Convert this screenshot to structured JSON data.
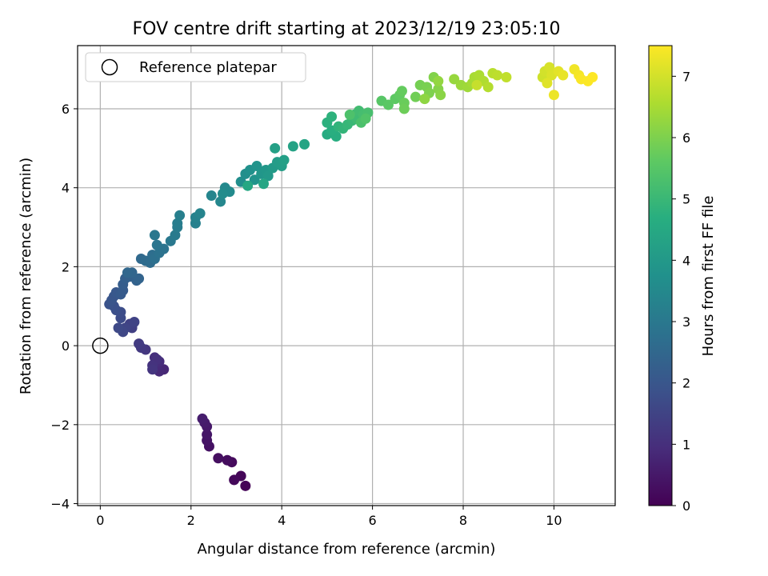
{
  "chart_data": {
    "type": "scatter",
    "title": "FOV centre drift starting at 2023/12/19 23:05:10",
    "xlabel": "Angular distance from reference (arcmin)",
    "ylabel": "Rotation from reference (arcmin)",
    "xlim": [
      -0.5,
      11.35
    ],
    "ylim": [
      -4.05,
      7.6
    ],
    "xticks": [
      0,
      2,
      4,
      6,
      8,
      10
    ],
    "yticks": [
      -4,
      -2,
      0,
      2,
      4,
      6
    ],
    "grid": true,
    "legend": {
      "position": "top-left",
      "entries": [
        "Reference platepar"
      ]
    },
    "reference_point": {
      "x": 0,
      "y": 0,
      "label": "Reference platepar"
    },
    "colorbar": {
      "label": "Hours from first FF file",
      "colormap": "viridis",
      "range": [
        0,
        7.5
      ],
      "ticks": [
        0,
        1,
        2,
        3,
        4,
        5,
        6,
        7
      ]
    },
    "points": [
      [
        3.2,
        -3.55,
        0.05
      ],
      [
        3.1,
        -3.3,
        0.1
      ],
      [
        2.95,
        -3.4,
        0.15
      ],
      [
        2.9,
        -2.95,
        0.2
      ],
      [
        2.8,
        -2.9,
        0.25
      ],
      [
        2.6,
        -2.85,
        0.3
      ],
      [
        2.4,
        -2.55,
        0.35
      ],
      [
        2.35,
        -2.4,
        0.4
      ],
      [
        2.35,
        -2.25,
        0.45
      ],
      [
        2.35,
        -2.05,
        0.5
      ],
      [
        2.3,
        -1.95,
        0.55
      ],
      [
        2.25,
        -1.85,
        0.6
      ],
      [
        1.4,
        -0.6,
        0.8
      ],
      [
        1.3,
        -0.65,
        0.85
      ],
      [
        1.25,
        -0.5,
        0.9
      ],
      [
        1.3,
        -0.4,
        0.95
      ],
      [
        1.2,
        -0.3,
        1.0
      ],
      [
        1.25,
        -0.35,
        1.05
      ],
      [
        1.15,
        -0.5,
        1.1
      ],
      [
        1.15,
        -0.6,
        1.15
      ],
      [
        1.0,
        -0.1,
        1.2
      ],
      [
        0.9,
        -0.05,
        1.25
      ],
      [
        0.85,
        0.05,
        1.3
      ],
      [
        0.7,
        0.45,
        1.4
      ],
      [
        0.65,
        0.55,
        1.45
      ],
      [
        0.75,
        0.6,
        1.5
      ],
      [
        0.55,
        0.45,
        1.55
      ],
      [
        0.5,
        0.35,
        1.6
      ],
      [
        0.4,
        0.45,
        1.65
      ],
      [
        0.45,
        0.7,
        1.7
      ],
      [
        0.45,
        0.85,
        1.75
      ],
      [
        0.35,
        0.9,
        1.8
      ],
      [
        0.3,
        1.0,
        1.85
      ],
      [
        0.2,
        1.05,
        1.9
      ],
      [
        0.25,
        1.15,
        1.95
      ],
      [
        0.3,
        1.25,
        2.0
      ],
      [
        0.35,
        1.35,
        2.05
      ],
      [
        0.45,
        1.3,
        2.1
      ],
      [
        0.5,
        1.4,
        2.15
      ],
      [
        0.5,
        1.55,
        2.2
      ],
      [
        0.55,
        1.7,
        2.25
      ],
      [
        0.65,
        1.75,
        2.3
      ],
      [
        0.8,
        1.65,
        2.35
      ],
      [
        0.85,
        1.7,
        2.4
      ],
      [
        0.7,
        1.85,
        2.45
      ],
      [
        0.6,
        1.85,
        2.5
      ],
      [
        0.9,
        2.2,
        2.55
      ],
      [
        1.0,
        2.15,
        2.6
      ],
      [
        1.1,
        2.1,
        2.65
      ],
      [
        1.15,
        2.3,
        2.7
      ],
      [
        1.2,
        2.2,
        2.75
      ],
      [
        1.3,
        2.35,
        2.8
      ],
      [
        1.4,
        2.45,
        2.85
      ],
      [
        1.25,
        2.55,
        2.9
      ],
      [
        1.2,
        2.8,
        2.95
      ],
      [
        1.55,
        2.65,
        3.0
      ],
      [
        1.65,
        2.8,
        3.05
      ],
      [
        1.7,
        3.0,
        3.1
      ],
      [
        1.7,
        3.1,
        3.15
      ],
      [
        1.75,
        3.3,
        3.2
      ],
      [
        2.1,
        3.1,
        3.25
      ],
      [
        2.1,
        3.25,
        3.3
      ],
      [
        2.2,
        3.35,
        3.35
      ],
      [
        2.45,
        3.8,
        3.4
      ],
      [
        2.65,
        3.65,
        3.45
      ],
      [
        2.75,
        4.0,
        3.5
      ],
      [
        2.85,
        3.9,
        3.55
      ],
      [
        2.7,
        3.85,
        3.6
      ],
      [
        3.1,
        4.15,
        3.65
      ],
      [
        3.2,
        4.35,
        3.7
      ],
      [
        3.3,
        4.45,
        3.75
      ],
      [
        3.4,
        4.2,
        3.8
      ],
      [
        3.45,
        4.55,
        3.85
      ],
      [
        3.55,
        4.35,
        3.9
      ],
      [
        3.65,
        4.45,
        3.95
      ],
      [
        3.7,
        4.3,
        4.0
      ],
      [
        3.8,
        4.5,
        4.05
      ],
      [
        3.9,
        4.65,
        4.1
      ],
      [
        4.0,
        4.55,
        4.15
      ],
      [
        4.05,
        4.7,
        4.2
      ],
      [
        3.85,
        5.0,
        4.25
      ],
      [
        4.25,
        5.05,
        4.3
      ],
      [
        4.5,
        5.1,
        4.35
      ],
      [
        3.6,
        4.1,
        4.4
      ],
      [
        3.25,
        4.05,
        4.45
      ],
      [
        5.0,
        5.35,
        4.6
      ],
      [
        5.2,
        5.3,
        4.65
      ],
      [
        5.1,
        5.45,
        4.7
      ],
      [
        5.0,
        5.65,
        4.75
      ],
      [
        5.1,
        5.8,
        4.8
      ],
      [
        5.25,
        5.55,
        4.85
      ],
      [
        5.35,
        5.5,
        4.9
      ],
      [
        5.45,
        5.6,
        4.95
      ],
      [
        5.55,
        5.7,
        5.0
      ],
      [
        5.6,
        5.85,
        5.05
      ],
      [
        5.65,
        5.75,
        5.1
      ],
      [
        5.7,
        5.95,
        5.15
      ],
      [
        5.8,
        5.85,
        5.2
      ],
      [
        5.9,
        5.9,
        5.25
      ],
      [
        5.75,
        5.65,
        5.3
      ],
      [
        5.5,
        5.85,
        5.35
      ],
      [
        5.85,
        5.75,
        5.4
      ],
      [
        6.2,
        6.2,
        5.5
      ],
      [
        6.35,
        6.1,
        5.55
      ],
      [
        6.5,
        6.25,
        5.6
      ],
      [
        6.6,
        6.35,
        5.65
      ],
      [
        6.65,
        6.45,
        5.7
      ],
      [
        6.7,
        6.15,
        5.75
      ],
      [
        6.7,
        6.0,
        5.8
      ],
      [
        6.95,
        6.3,
        5.85
      ],
      [
        7.05,
        6.6,
        5.9
      ],
      [
        7.2,
        6.55,
        5.95
      ],
      [
        7.25,
        6.4,
        6.0
      ],
      [
        7.35,
        6.8,
        6.05
      ],
      [
        7.45,
        6.5,
        6.1
      ],
      [
        7.5,
        6.35,
        6.15
      ],
      [
        7.15,
        6.25,
        6.2
      ],
      [
        7.45,
        6.7,
        6.25
      ],
      [
        7.8,
        6.75,
        6.3
      ],
      [
        7.95,
        6.6,
        6.35
      ],
      [
        8.1,
        6.55,
        6.4
      ],
      [
        8.2,
        6.65,
        6.45
      ],
      [
        8.25,
        6.8,
        6.5
      ],
      [
        8.35,
        6.85,
        6.55
      ],
      [
        8.45,
        6.7,
        6.6
      ],
      [
        8.55,
        6.55,
        6.65
      ],
      [
        8.65,
        6.9,
        6.7
      ],
      [
        8.75,
        6.85,
        6.75
      ],
      [
        8.95,
        6.8,
        6.8
      ],
      [
        8.3,
        6.6,
        6.85
      ],
      [
        9.75,
        6.8,
        6.95
      ],
      [
        9.8,
        6.95,
        7.0
      ],
      [
        9.9,
        7.05,
        7.05
      ],
      [
        9.95,
        6.85,
        7.1
      ],
      [
        9.85,
        6.65,
        7.15
      ],
      [
        10.1,
        6.95,
        7.2
      ],
      [
        10.2,
        6.85,
        7.25
      ],
      [
        10.0,
        6.35,
        7.3
      ],
      [
        10.45,
        7.0,
        7.35
      ],
      [
        10.55,
        6.85,
        7.4
      ],
      [
        10.6,
        6.75,
        7.45
      ],
      [
        10.75,
        6.7,
        7.48
      ],
      [
        10.85,
        6.8,
        7.5
      ]
    ]
  }
}
